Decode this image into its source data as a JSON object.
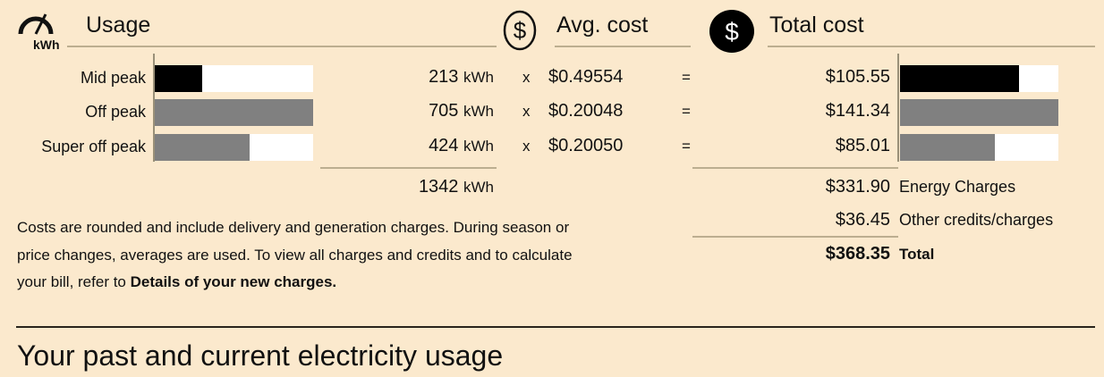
{
  "usage": {
    "title": "Usage",
    "icon": "gauge-icon",
    "icon_label": "kWh",
    "unit": "kWh",
    "rows": [
      {
        "label": "Mid peak",
        "kwh": "213",
        "fill": 0.3,
        "color": "#000000"
      },
      {
        "label": "Off peak",
        "kwh": "705",
        "fill": 1.0,
        "color": "#808080"
      },
      {
        "label": "Super off peak",
        "kwh": "424",
        "fill": 0.6,
        "color": "#808080"
      }
    ],
    "total_kwh": "1342"
  },
  "avg_cost": {
    "title": "Avg. cost",
    "icon": "dollar-circle-outline-icon",
    "times": "x",
    "equals": "=",
    "rates": [
      "$0.49554",
      "$0.20048",
      "$0.20050"
    ]
  },
  "total_cost": {
    "title": "Total cost",
    "icon": "dollar-circle-filled-icon",
    "rows": [
      {
        "amount": "$105.55",
        "fill": 0.75,
        "color": "#000000"
      },
      {
        "amount": "$141.34",
        "fill": 1.0,
        "color": "#808080"
      },
      {
        "amount": "$85.01",
        "fill": 0.6,
        "color": "#808080"
      }
    ],
    "energy_charges": {
      "amount": "$331.90",
      "label": "Energy Charges"
    },
    "other": {
      "amount": "$36.45",
      "label": "Other credits/charges"
    },
    "total": {
      "amount": "$368.35",
      "label": "Total"
    }
  },
  "note": {
    "text": "Costs are rounded and include delivery and generation charges. During season or price changes, averages are used. To view all charges and credits and to calculate your bill, refer to ",
    "bold": "Details of your new charges."
  },
  "section_heading": "Your past and current electricity usage"
}
